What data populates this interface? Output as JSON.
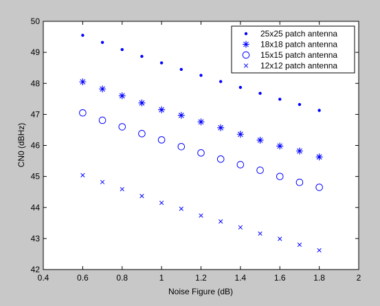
{
  "chart_data": {
    "type": "scatter",
    "xlabel": "Noise Figure (dB)",
    "ylabel": "CN0 (dBHz)",
    "xlim": [
      0.4,
      2
    ],
    "ylim": [
      42,
      50
    ],
    "xticks": [
      "0.4",
      "0.6",
      "0.8",
      "1",
      "1.2",
      "1.4",
      "1.6",
      "1.8",
      "2"
    ],
    "yticks": [
      "42",
      "43",
      "44",
      "45",
      "46",
      "47",
      "48",
      "49",
      "50"
    ],
    "x": [
      0.6,
      0.7,
      0.8,
      0.9,
      1.0,
      1.1,
      1.2,
      1.3,
      1.4,
      1.5,
      1.6,
      1.7,
      1.8
    ],
    "legend_position": "top-right",
    "grid": false,
    "marker_color": "#0000ff",
    "background_color": "#c8c8c8",
    "plot_background_color": "#ffffff",
    "series": [
      {
        "name": "25x25 patch antenna",
        "marker": "dot",
        "values": [
          49.55,
          49.32,
          49.09,
          48.87,
          48.66,
          48.45,
          48.26,
          48.06,
          47.87,
          47.68,
          47.49,
          47.32,
          47.13
        ]
      },
      {
        "name": "18x18 patch antenna",
        "marker": "star",
        "values": [
          48.05,
          47.82,
          47.6,
          47.37,
          47.15,
          46.97,
          46.76,
          46.57,
          46.36,
          46.17,
          45.98,
          45.82,
          45.63
        ]
      },
      {
        "name": "15x15 patch antenna",
        "marker": "circle",
        "values": [
          47.05,
          46.81,
          46.6,
          46.38,
          46.18,
          45.96,
          45.76,
          45.56,
          45.38,
          45.2,
          45.0,
          44.81,
          44.65
        ]
      },
      {
        "name": "12x12 patch antenna",
        "marker": "x",
        "values": [
          45.04,
          44.82,
          44.59,
          44.37,
          44.15,
          43.96,
          43.74,
          43.55,
          43.36,
          43.16,
          42.99,
          42.8,
          42.62
        ]
      }
    ]
  }
}
